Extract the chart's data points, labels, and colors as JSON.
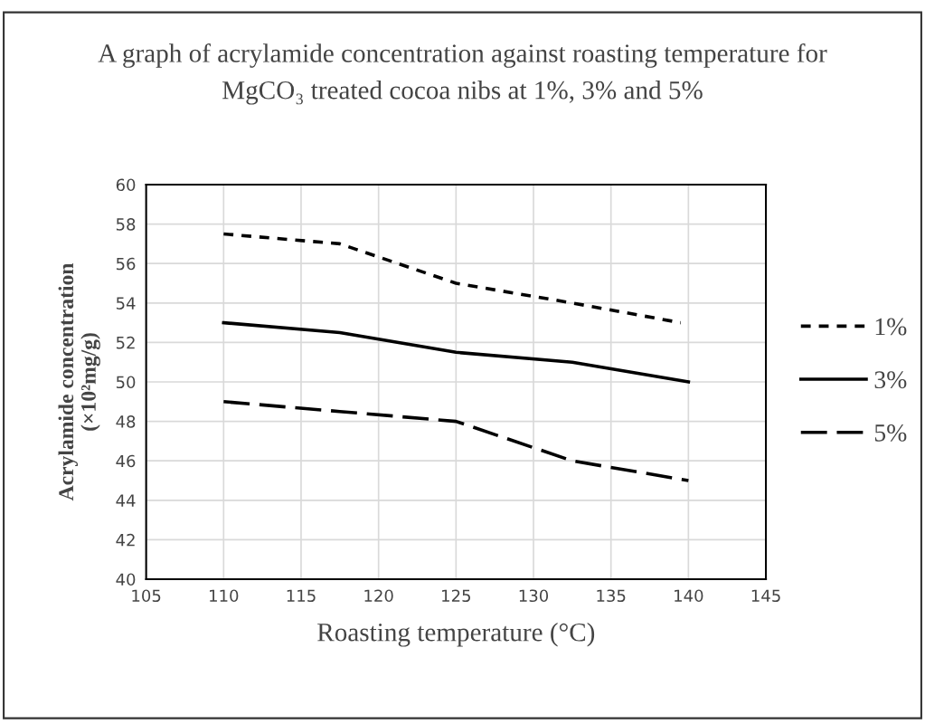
{
  "chart_data": {
    "type": "line",
    "title": "A graph of acrylamide concentration against roasting temperature for\nMgCO₃ treated cocoa nibs at 1%, 3% and 5%",
    "xlabel": "Roasting temperature (°C)",
    "ylabel": "Acrylamide concentration\n(×10²mg/g)",
    "xlim": [
      105,
      145
    ],
    "xticks": [
      105,
      110,
      115,
      120,
      125,
      130,
      135,
      140,
      145
    ],
    "ylim": [
      40,
      60
    ],
    "yticks": [
      40,
      42,
      44,
      46,
      48,
      50,
      52,
      54,
      56,
      58,
      60
    ],
    "grid": true,
    "legend": "right",
    "marker": "none",
    "series": [
      {
        "name": "1%",
        "color": "#000000",
        "line_style": "dotted",
        "x": [
          110,
          117.5,
          125,
          132.5,
          139.5
        ],
        "values": [
          57.5,
          57,
          55,
          54,
          53
        ]
      },
      {
        "name": "3%",
        "color": "#000000",
        "line_style": "solid",
        "x": [
          110,
          117.5,
          125,
          132.5,
          140
        ],
        "values": [
          53,
          52.5,
          51.5,
          51,
          50
        ]
      },
      {
        "name": "5%",
        "color": "#000000",
        "line_style": "dashed",
        "x": [
          110,
          117.5,
          125,
          132.5,
          140
        ],
        "values": [
          49,
          48.5,
          48,
          46,
          45
        ]
      }
    ]
  }
}
